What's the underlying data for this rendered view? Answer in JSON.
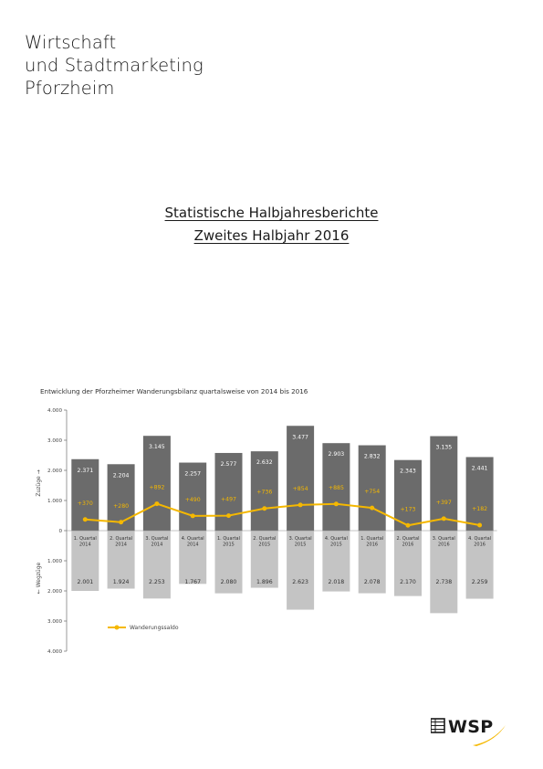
{
  "brand": {
    "line1": "Wirtschaft",
    "line2": "und Stadtmarketing",
    "line3": "Pforzheim"
  },
  "report": {
    "title_line1": "Statistische Halbjahresberichte",
    "title_line2": "Zweites Halbjahr 2016"
  },
  "logo": {
    "text": "WSP",
    "accent_color": "#f5b800"
  },
  "chart_data": {
    "type": "bar",
    "title": "Entwicklung der Pforzheimer Wanderungsbilanz quartalsweise von 2014 bis 2016",
    "ylabel_top": "Zuzüge",
    "ylabel_bottom": "Wegzüge",
    "ylim": [
      -4000,
      4000
    ],
    "yticks": [
      {
        "value": 4000,
        "label": "4.000"
      },
      {
        "value": 3000,
        "label": "3.000"
      },
      {
        "value": 2000,
        "label": "2.000"
      },
      {
        "value": 1000,
        "label": "1.000"
      },
      {
        "value": 0,
        "label": "0"
      },
      {
        "value": -1000,
        "label": "1.000"
      },
      {
        "value": -2000,
        "label": "2.000"
      },
      {
        "value": -3000,
        "label": "3.000"
      },
      {
        "value": -4000,
        "label": "4.000"
      }
    ],
    "categories": [
      [
        "1. Quartal",
        "2014"
      ],
      [
        "2. Quartal",
        "2014"
      ],
      [
        "3. Quartal",
        "2014"
      ],
      [
        "4. Quartal",
        "2014"
      ],
      [
        "1. Quartal",
        "2015"
      ],
      [
        "2. Quartal",
        "2015"
      ],
      [
        "3. Quartal",
        "2015"
      ],
      [
        "4. Quartal",
        "2015"
      ],
      [
        "1. Quartal",
        "2016"
      ],
      [
        "2. Quartal",
        "2016"
      ],
      [
        "3. Quartal",
        "2016"
      ],
      [
        "4. Quartal",
        "2016"
      ]
    ],
    "series": [
      {
        "name": "Zuzüge",
        "color": "#6b6b6b",
        "values": [
          2371,
          2204,
          3145,
          2257,
          2577,
          2632,
          3477,
          2903,
          2832,
          2343,
          3135,
          2441
        ],
        "labels": [
          "2.371",
          "2.204",
          "3.145",
          "2.257",
          "2.577",
          "2.632",
          "3.477",
          "2.903",
          "2.832",
          "2.343",
          "3.135",
          "2.441"
        ]
      },
      {
        "name": "Wegzüge",
        "color": "#c4c4c4",
        "values": [
          2001,
          1924,
          2253,
          1767,
          2080,
          1896,
          2623,
          2018,
          2078,
          2170,
          2738,
          2259
        ],
        "labels": [
          "2.001",
          "1.924",
          "2.253",
          "1.767",
          "2.080",
          "1.896",
          "2.623",
          "2.018",
          "2.078",
          "2.170",
          "2.738",
          "2.259"
        ]
      },
      {
        "name": "Wanderungssaldo",
        "color": "#f5b800",
        "values": [
          370,
          280,
          892,
          490,
          497,
          736,
          854,
          885,
          754,
          173,
          397,
          182
        ],
        "labels": [
          "+370",
          "+280",
          "+892",
          "+490",
          "+497",
          "+736",
          "+854",
          "+885",
          "+754",
          "+173",
          "+397",
          "+182"
        ]
      }
    ],
    "legend": {
      "label": "Wanderungssaldo",
      "placement": "bottom-left"
    },
    "grid": false
  }
}
